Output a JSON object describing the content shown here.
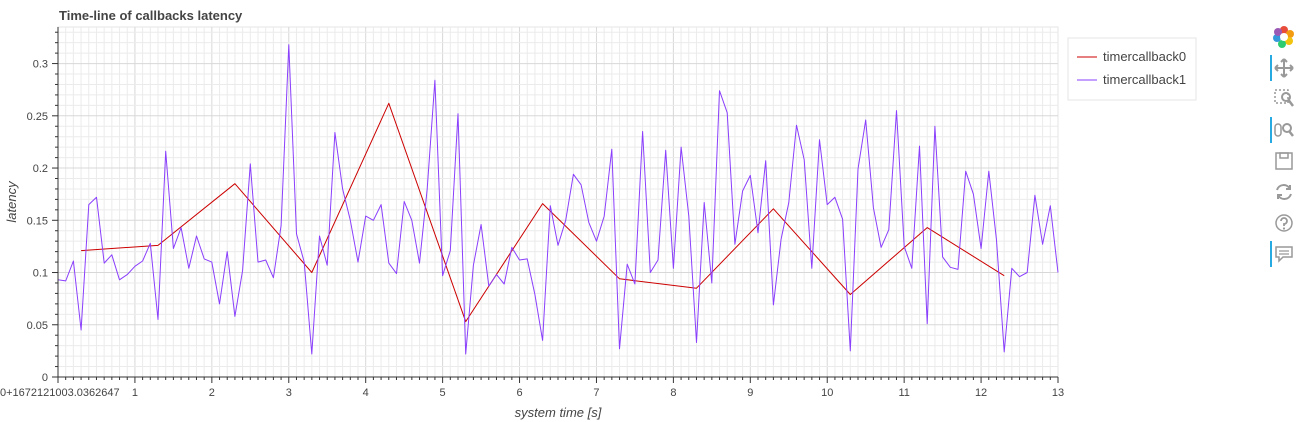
{
  "chart_data": {
    "type": "line",
    "title": "Time-line of callbacks latency",
    "xlabel": "system time [s]",
    "ylabel": "latency",
    "xlim": [
      0,
      13
    ],
    "ylim": [
      0,
      0.335
    ],
    "x_tick_labels": [
      "0+1672121003.0362647",
      "1",
      "2",
      "3",
      "4",
      "5",
      "6",
      "7",
      "8",
      "9",
      "10",
      "11",
      "12",
      "13"
    ],
    "y_tick_labels": [
      "0",
      "0.05",
      "0.1",
      "0.15",
      "0.2",
      "0.25",
      "0.3"
    ],
    "grid": true,
    "legend_position": "top-right",
    "series": [
      {
        "name": "timercallback0",
        "color": "#cc0000",
        "x": [
          0.3,
          1.3,
          2.3,
          3.3,
          4.3,
          5.3,
          6.3,
          7.3,
          8.3,
          9.3,
          10.3,
          11.3,
          12.3
        ],
        "y": [
          0.121,
          0.126,
          0.185,
          0.1,
          0.262,
          0.053,
          0.166,
          0.094,
          0.085,
          0.161,
          0.079,
          0.143,
          0.097
        ]
      },
      {
        "name": "timercallback1",
        "color": "#8a3ffc",
        "x": [
          0.0,
          0.1,
          0.2,
          0.3,
          0.4,
          0.5,
          0.6,
          0.7,
          0.8,
          0.9,
          1.0,
          1.1,
          1.2,
          1.3,
          1.4,
          1.5,
          1.6,
          1.7,
          1.8,
          1.9,
          2.0,
          2.1,
          2.2,
          2.3,
          2.4,
          2.5,
          2.6,
          2.7,
          2.8,
          2.9,
          3.0,
          3.1,
          3.2,
          3.3,
          3.4,
          3.5,
          3.6,
          3.7,
          3.8,
          3.9,
          4.0,
          4.1,
          4.2,
          4.3,
          4.4,
          4.5,
          4.6,
          4.7,
          4.8,
          4.9,
          5.0,
          5.1,
          5.2,
          5.3,
          5.4,
          5.5,
          5.6,
          5.7,
          5.8,
          5.9,
          6.0,
          6.1,
          6.2,
          6.3,
          6.4,
          6.5,
          6.6,
          6.7,
          6.8,
          6.9,
          7.0,
          7.1,
          7.2,
          7.3,
          7.4,
          7.5,
          7.6,
          7.7,
          7.8,
          7.9,
          8.0,
          8.1,
          8.2,
          8.3,
          8.4,
          8.5,
          8.6,
          8.7,
          8.8,
          8.9,
          9.0,
          9.1,
          9.2,
          9.3,
          9.4,
          9.5,
          9.6,
          9.7,
          9.8,
          9.9,
          10.0,
          10.1,
          10.2,
          10.3,
          10.4,
          10.5,
          10.6,
          10.7,
          10.8,
          10.9,
          11.0,
          11.1,
          11.2,
          11.3,
          11.4,
          11.5,
          11.6,
          11.7,
          11.8,
          11.9,
          12.0,
          12.1,
          12.2,
          12.3,
          12.4,
          12.5,
          12.6,
          12.7,
          12.8,
          12.9,
          13.0
        ],
        "y": [
          0.093,
          0.092,
          0.111,
          0.045,
          0.165,
          0.172,
          0.109,
          0.117,
          0.093,
          0.098,
          0.106,
          0.111,
          0.128,
          0.055,
          0.216,
          0.123,
          0.143,
          0.104,
          0.135,
          0.113,
          0.11,
          0.07,
          0.12,
          0.058,
          0.102,
          0.204,
          0.11,
          0.112,
          0.095,
          0.145,
          0.318,
          0.137,
          0.11,
          0.022,
          0.135,
          0.107,
          0.234,
          0.18,
          0.15,
          0.11,
          0.154,
          0.15,
          0.165,
          0.109,
          0.099,
          0.168,
          0.15,
          0.109,
          0.18,
          0.284,
          0.097,
          0.121,
          0.252,
          0.022,
          0.107,
          0.146,
          0.087,
          0.098,
          0.089,
          0.124,
          0.112,
          0.113,
          0.079,
          0.035,
          0.164,
          0.126,
          0.15,
          0.194,
          0.184,
          0.148,
          0.13,
          0.154,
          0.218,
          0.027,
          0.108,
          0.089,
          0.235,
          0.1,
          0.112,
          0.217,
          0.104,
          0.22,
          0.154,
          0.033,
          0.167,
          0.09,
          0.274,
          0.253,
          0.127,
          0.178,
          0.193,
          0.138,
          0.207,
          0.069,
          0.132,
          0.167,
          0.241,
          0.208,
          0.104,
          0.227,
          0.165,
          0.172,
          0.151,
          0.025,
          0.199,
          0.246,
          0.162,
          0.124,
          0.141,
          0.255,
          0.125,
          0.104,
          0.221,
          0.051,
          0.24,
          0.115,
          0.105,
          0.103,
          0.197,
          0.175,
          0.123,
          0.197,
          0.131,
          0.024,
          0.104,
          0.096,
          0.1,
          0.174,
          0.127,
          0.164,
          0.1
        ]
      }
    ]
  },
  "toolbar": {
    "items": [
      {
        "icon": "bokeh-logo-icon",
        "active": false
      },
      {
        "icon": "pan-icon",
        "active": true
      },
      {
        "icon": "box-zoom-icon",
        "active": false
      },
      {
        "icon": "wheel-zoom-icon",
        "active": true
      },
      {
        "icon": "save-icon",
        "active": false
      },
      {
        "icon": "reset-icon",
        "active": false
      },
      {
        "icon": "help-icon",
        "active": false
      },
      {
        "icon": "hover-icon",
        "active": true
      }
    ]
  }
}
